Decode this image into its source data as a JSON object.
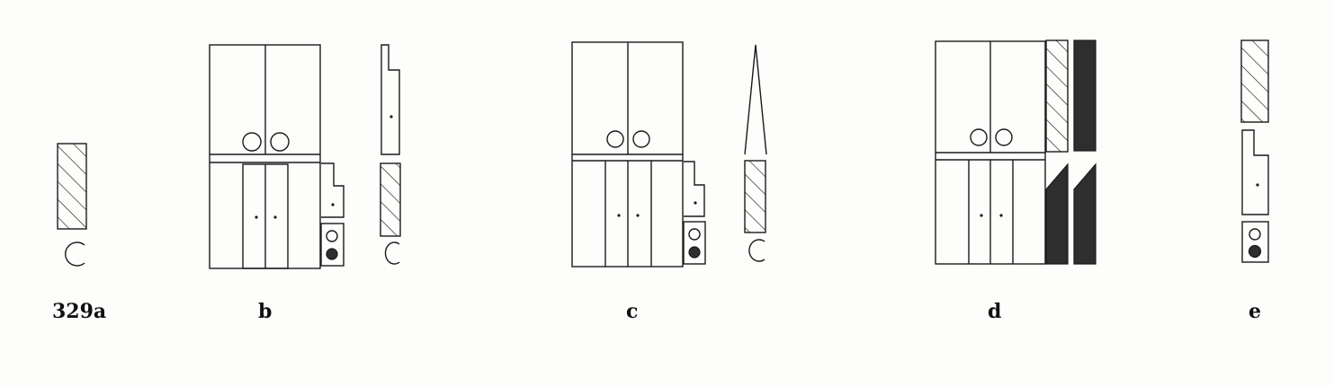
{
  "figure": {
    "labels": {
      "a": "329a",
      "b": "b",
      "c": "c",
      "d": "d",
      "e": "e"
    }
  }
}
